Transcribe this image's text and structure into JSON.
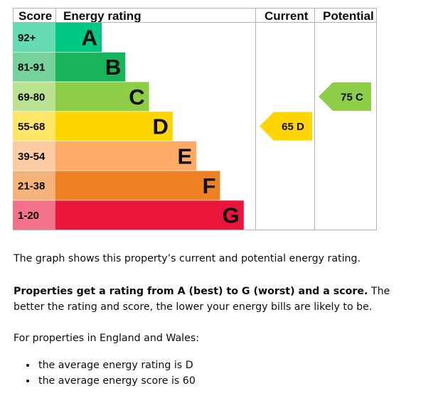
{
  "chart_data": {
    "type": "energy-rating-bands",
    "headers": {
      "score": "Score",
      "rating": "Energy rating",
      "current": "Current",
      "potential": "Potential"
    },
    "bands": [
      {
        "score": "92+",
        "letter": "A",
        "color": "#00c781",
        "score_color": "#66dcb3"
      },
      {
        "score": "81-91",
        "letter": "B",
        "color": "#19b459",
        "score_color": "#75d29b"
      },
      {
        "score": "69-80",
        "letter": "C",
        "color": "#8dce46",
        "score_color": "#bbe290"
      },
      {
        "score": "55-68",
        "letter": "D",
        "color": "#ffd500",
        "score_color": "#ffe666"
      },
      {
        "score": "39-54",
        "letter": "E",
        "color": "#fcaa65",
        "score_color": "#fdcca3"
      },
      {
        "score": "21-38",
        "letter": "F",
        "color": "#ef8023",
        "score_color": "#f5b37b"
      },
      {
        "score": "1-20",
        "letter": "G",
        "color": "#e9153b",
        "score_color": "#f27389"
      }
    ],
    "current": {
      "value": 65,
      "letter": "D",
      "label": "65 D",
      "color": "#ffd500"
    },
    "potential": {
      "value": 75,
      "letter": "C",
      "label": "75 C",
      "color": "#8dce46"
    }
  },
  "text": {
    "intro": "The graph shows this property’s current and potential energy rating.",
    "rating_bold": "Properties get a rating from A (best) to G (worst) and a score.",
    "rating_rest": " The better the rating and score, the lower your energy bills are likely to be.",
    "region": "For properties in England and Wales:",
    "averages": [
      "the average energy rating is D",
      "the average energy score is 60"
    ]
  }
}
